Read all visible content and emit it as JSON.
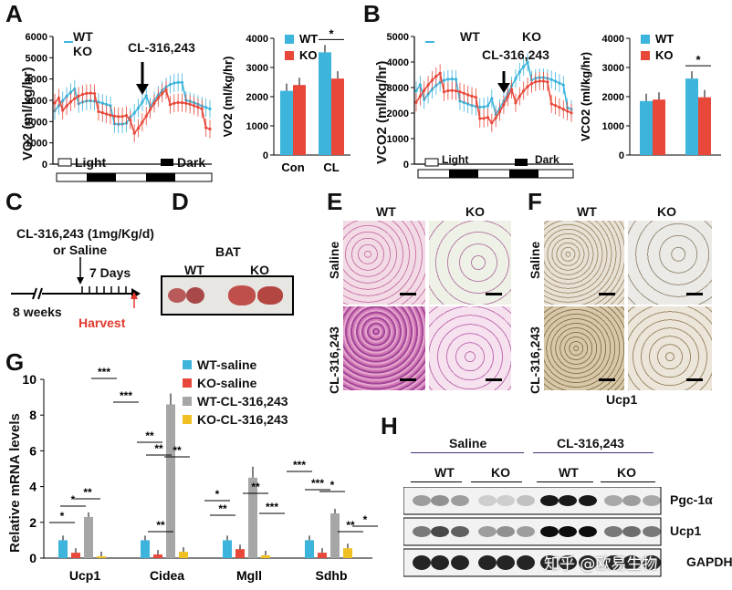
{
  "panels": {
    "A": "A",
    "B": "B",
    "C": "C",
    "D": "D",
    "E": "E",
    "F": "F",
    "G": "G",
    "H": "H"
  },
  "legend": {
    "wt": "WT",
    "ko": "KO"
  },
  "colors": {
    "wt": "#3cb4dc",
    "ko": "#e8483a",
    "gray": "#a6a6a6",
    "yellow": "#f0c020",
    "red_text": "#e23a2e"
  },
  "panelA": {
    "ylabel": "VO2 (ml/kg/hr)",
    "annotation": "CL-316,243",
    "light_label": "Light",
    "dark_label": "Dark",
    "yticks": [
      "0",
      "1000",
      "2000",
      "3000",
      "4000",
      "5000",
      "6000"
    ]
  },
  "panelB": {
    "ylabel": "VCO2 (ml/kg/hr)",
    "annotation": "CL-316,243",
    "light_label": "Light",
    "dark_label": "Dark",
    "yticks": [
      "0",
      "1000",
      "2000",
      "3000",
      "4000",
      "5000"
    ]
  },
  "chart_data": [
    {
      "type": "bar",
      "title": "",
      "ylabel": "VO2 (ml/kg/hr)",
      "categories": [
        "Con",
        "CL"
      ],
      "ylim": [
        0,
        4000
      ],
      "yticks": [
        "0",
        "1000",
        "2000",
        "3000",
        "4000"
      ],
      "series": [
        {
          "name": "WT",
          "values": [
            2200,
            3520
          ]
        },
        {
          "name": "KO",
          "values": [
            2400,
            2620
          ]
        }
      ],
      "annotations": [
        "*"
      ]
    },
    {
      "type": "bar",
      "title": "",
      "ylabel": "VCO2 (ml/kg/hr)",
      "categories": [
        "",
        ""
      ],
      "ylim": [
        0,
        4000
      ],
      "yticks": [
        "0",
        "1000",
        "2000",
        "3000",
        "4000"
      ],
      "series": [
        {
          "name": "WT",
          "values": [
            1850,
            2620
          ]
        },
        {
          "name": "KO",
          "values": [
            1900,
            1980
          ]
        }
      ],
      "annotations": [
        "*"
      ]
    },
    {
      "type": "bar",
      "ylabel": "Relative mRNA levels",
      "categories": [
        "Ucp1",
        "Cidea",
        "Mgll",
        "Sdhb"
      ],
      "ylim": [
        0,
        10
      ],
      "yticks": [
        "0",
        "2",
        "4",
        "6",
        "8",
        "10"
      ],
      "series": [
        {
          "name": "WT-saline",
          "values": [
            1.0,
            1.0,
            1.0,
            1.0
          ]
        },
        {
          "name": "KO-saline",
          "values": [
            0.3,
            0.2,
            0.5,
            0.3
          ]
        },
        {
          "name": "WT-CL-316,243",
          "values": [
            2.3,
            8.6,
            4.5,
            2.5
          ]
        },
        {
          "name": "KO-CL-316,243",
          "values": [
            0.1,
            0.35,
            0.15,
            0.55
          ]
        }
      ],
      "extra_bars_note": "",
      "sig": [
        "*",
        "*",
        "**",
        "***",
        "***",
        "**",
        "**",
        "**",
        "**",
        "*",
        "**",
        "**",
        "***",
        "***",
        "***",
        "*",
        "**",
        "*"
      ]
    }
  ],
  "panelC": {
    "line1": "CL-316,243 (1mg/Kg/d)",
    "line2": "or Saline",
    "days": "7 Days",
    "weeks": "8 weeks",
    "harvest": "Harvest"
  },
  "panelD": {
    "title": "BAT",
    "wt": "WT",
    "ko": "KO"
  },
  "panelE": {
    "col_wt": "WT",
    "col_ko": "KO",
    "row1": "Saline",
    "row2": "CL-316,243"
  },
  "panelF": {
    "col_wt": "WT",
    "col_ko": "KO",
    "row1": "Saline",
    "row2": "CL-316,243",
    "caption": "Ucp1"
  },
  "panelG": {
    "xlabels": [
      "Ucp1",
      "Cidea",
      "Mgll",
      "Sdhb"
    ],
    "legend": [
      "WT-saline",
      "KO-saline",
      "WT-CL-316,243",
      "KO-CL-316,243"
    ]
  },
  "panelH": {
    "saline": "Saline",
    "cl": "CL-316,243",
    "wt1": "WT",
    "ko1": "KO",
    "wt2": "WT",
    "ko2": "KO",
    "rows": [
      "Pgc-1α",
      "Ucp1",
      "GAPDH"
    ],
    "watermark": "知乎 @欧易生物"
  }
}
